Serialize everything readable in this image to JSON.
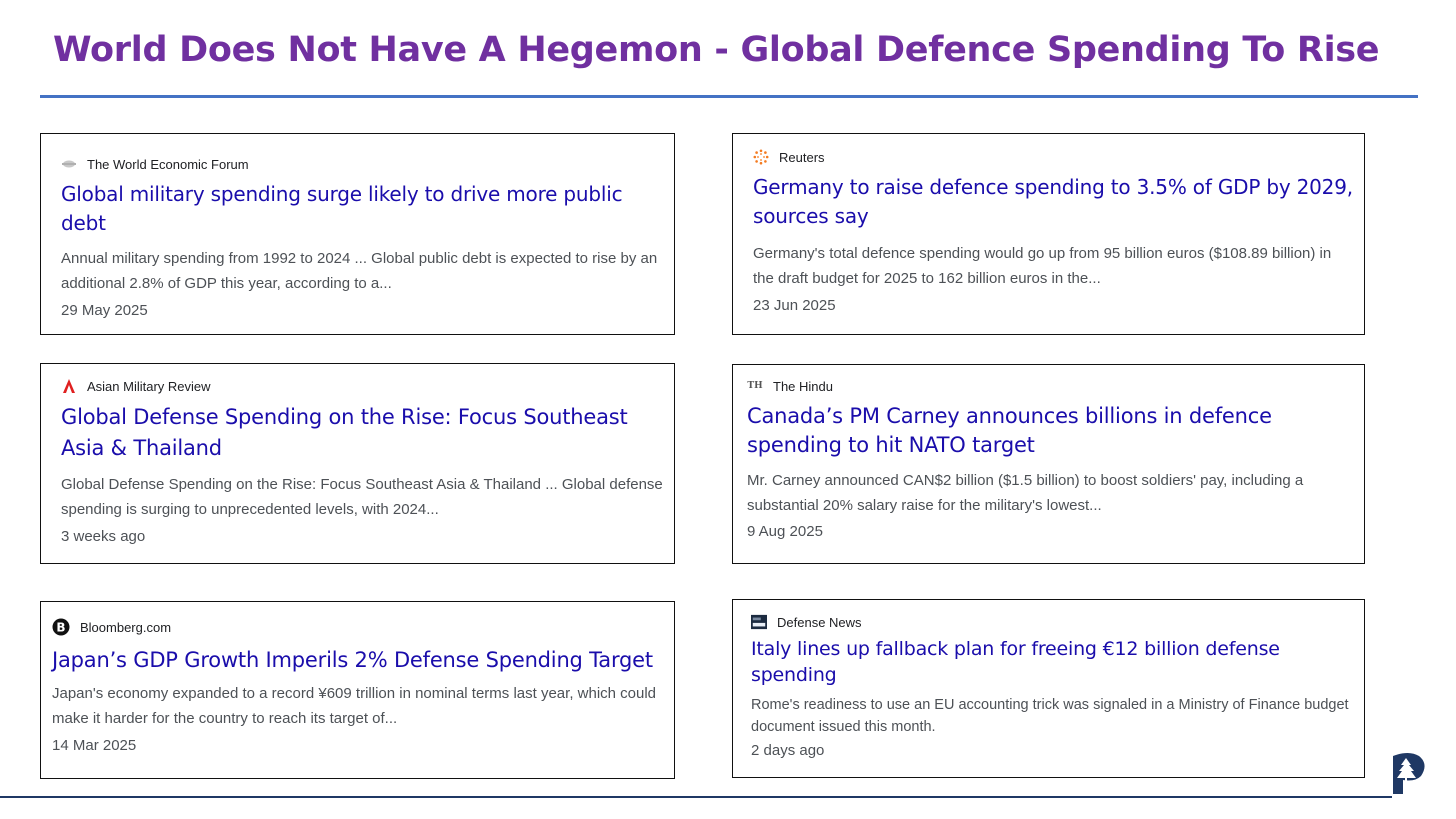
{
  "slide": {
    "title": "World Does Not Have A Hegemon - Global Defence Spending To Rise",
    "title_color": "#7030a0",
    "rule_color": "#4472c4"
  },
  "cards": [
    {
      "source": "The World Economic Forum",
      "source_icon": "wef-icon",
      "headline": "Global military spending surge likely to drive more public debt",
      "snippet": "Annual military spending from 1992 to 2024 ... Global public debt is expected to rise by an additional 2.8% of GDP this year, according to a...",
      "date": "29 May 2025"
    },
    {
      "source": "Reuters",
      "source_icon": "reuters-icon",
      "headline": "Germany to raise defence spending to 3.5% of GDP by 2029, sources say",
      "snippet": "Germany's total defence spending would go up from 95 billion euros ($108.89 billion) in the draft budget for 2025 to 162 billion euros in the...",
      "date": "23 Jun 2025"
    },
    {
      "source": "Asian Military Review",
      "source_icon": "amr-icon",
      "headline": "Global Defense Spending on the Rise: Focus Southeast Asia & Thailand",
      "snippet": "Global Defense Spending on the Rise: Focus Southeast Asia & Thailand ... Global defense spending is surging to unprecedented levels, with 2024...",
      "date": "3 weeks ago"
    },
    {
      "source": "The Hindu",
      "source_icon": "the-hindu-icon",
      "headline": "Canada’s PM Carney announces billions in defence spending to hit NATO target",
      "snippet": "Mr. Carney announced CAN$2 billion ($1.5 billion) to boost soldiers' pay, including a substantial 20% salary raise for the military's lowest...",
      "date": "9 Aug 2025"
    },
    {
      "source": "Bloomberg.com",
      "source_icon": "bloomberg-icon",
      "headline": "Japan’s GDP Growth Imperils 2% Defense Spending Target",
      "snippet": "Japan's economy expanded to a record ¥609 trillion in nominal terms last year, which could make it harder for the country to reach its target of...",
      "date": "14 Mar 2025"
    },
    {
      "source": "Defense News",
      "source_icon": "defense-news-icon",
      "headline": "Italy lines up fallback plan for freeing €12 billion defense spending",
      "snippet": "Rome's readiness to use an EU accounting trick was signaled in a Ministry of Finance budget document issued this month.",
      "date": "2 days ago"
    }
  ]
}
